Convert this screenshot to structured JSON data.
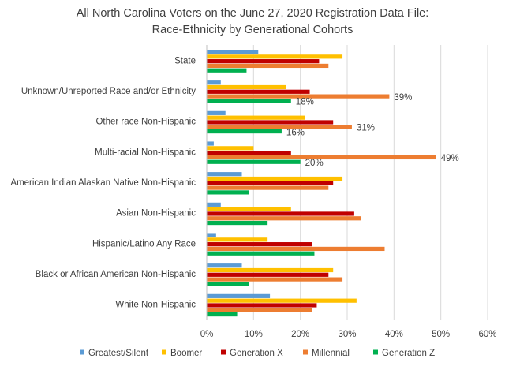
{
  "chart_data": {
    "type": "bar",
    "orientation": "horizontal",
    "title_lines": [
      "All North Carolina Voters on the June 27, 2020 Registration Data File:",
      "Race-Ethnicity by Generational Cohorts"
    ],
    "categories": [
      "State",
      "Unknown/Unreported  Race and/or Ethnicity",
      "Other race Non-Hispanic",
      "Multi-racial Non-Hispanic",
      "American Indian Alaskan Native Non-Hispanic",
      "Asian Non-Hispanic",
      "Hispanic/Latino Any Race",
      "Black or African American Non-Hispanic",
      "White Non-Hispanic"
    ],
    "series": [
      {
        "name": "Greatest/Silent",
        "color": "#5B9BD5",
        "values": [
          11,
          3,
          4,
          1.5,
          7.5,
          3,
          2,
          7.5,
          13.5
        ]
      },
      {
        "name": "Boomer",
        "color": "#FFC000",
        "values": [
          29,
          17,
          21,
          10,
          29,
          18,
          13,
          27,
          32
        ]
      },
      {
        "name": "Generation X",
        "color": "#C00000",
        "values": [
          24,
          22,
          27,
          18,
          27,
          31.5,
          22.5,
          26,
          23.5
        ]
      },
      {
        "name": "Millennial",
        "color": "#ED7D31",
        "values": [
          26,
          39,
          31,
          49,
          26,
          33,
          38,
          29,
          22.5
        ]
      },
      {
        "name": "Generation Z",
        "color": "#00B050",
        "values": [
          8.5,
          18,
          16,
          20,
          9,
          13,
          23,
          9,
          6.5
        ]
      }
    ],
    "data_labels": [
      {
        "category_index": 1,
        "series_index": 3,
        "text": "39%"
      },
      {
        "category_index": 1,
        "series_index": 4,
        "text": "18%"
      },
      {
        "category_index": 2,
        "series_index": 3,
        "text": "31%"
      },
      {
        "category_index": 2,
        "series_index": 4,
        "text": "16%"
      },
      {
        "category_index": 3,
        "series_index": 3,
        "text": "49%"
      },
      {
        "category_index": 3,
        "series_index": 4,
        "text": "20%"
      }
    ],
    "xlim": [
      0,
      60
    ],
    "x_ticks": [
      0,
      10,
      20,
      30,
      40,
      50,
      60
    ],
    "x_tick_labels": [
      "0%",
      "10%",
      "20%",
      "30%",
      "40%",
      "50%",
      "60%"
    ],
    "grid": true,
    "legend_position": "bottom",
    "colors": {
      "grid": "#D9D9D9",
      "axis": "#BFBFBF",
      "text": "#404040"
    }
  }
}
